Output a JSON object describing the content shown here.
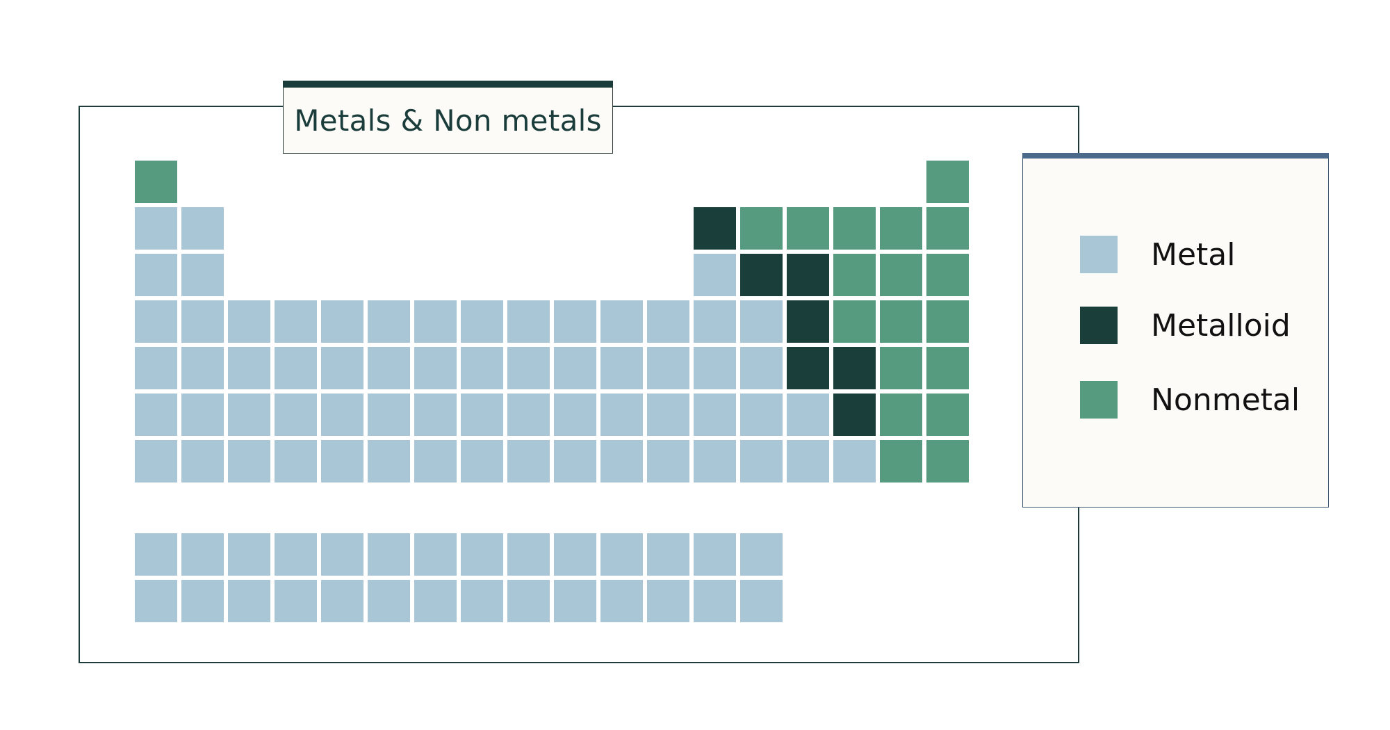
{
  "title": "Metals & Non metals",
  "colors": {
    "metal": "#a8c6d6",
    "metalloid": "#1a3f3b",
    "nonmetal": "#569a80"
  },
  "legend": [
    {
      "key": "metal",
      "label": "Metal"
    },
    {
      "key": "metalloid",
      "label": "Metalloid"
    },
    {
      "key": "nonmetal",
      "label": "Nonmetal"
    }
  ],
  "chart_data": {
    "type": "table",
    "main_rows": [
      [
        "N",
        "",
        "",
        "",
        "",
        "",
        "",
        "",
        "",
        "",
        "",
        "",
        "",
        "",
        "",
        "",
        "",
        "N"
      ],
      [
        "M",
        "M",
        "",
        "",
        "",
        "",
        "",
        "",
        "",
        "",
        "",
        "",
        "D",
        "N",
        "N",
        "N",
        "N",
        "N"
      ],
      [
        "M",
        "M",
        "",
        "",
        "",
        "",
        "",
        "",
        "",
        "",
        "",
        "",
        "M",
        "D",
        "D",
        "N",
        "N",
        "N"
      ],
      [
        "M",
        "M",
        "M",
        "M",
        "M",
        "M",
        "M",
        "M",
        "M",
        "M",
        "M",
        "M",
        "M",
        "M",
        "D",
        "N",
        "N",
        "N"
      ],
      [
        "M",
        "M",
        "M",
        "M",
        "M",
        "M",
        "M",
        "M",
        "M",
        "M",
        "M",
        "M",
        "M",
        "M",
        "D",
        "D",
        "N",
        "N"
      ],
      [
        "M",
        "M",
        "M",
        "M",
        "M",
        "M",
        "M",
        "M",
        "M",
        "M",
        "M",
        "M",
        "M",
        "M",
        "M",
        "D",
        "N",
        "N"
      ],
      [
        "M",
        "M",
        "M",
        "M",
        "M",
        "M",
        "M",
        "M",
        "M",
        "M",
        "M",
        "M",
        "M",
        "M",
        "M",
        "M",
        "N",
        "N"
      ]
    ],
    "extra_rows": [
      [
        "M",
        "M",
        "M",
        "M",
        "M",
        "M",
        "M",
        "M",
        "M",
        "M",
        "M",
        "M",
        "M",
        "M"
      ],
      [
        "M",
        "M",
        "M",
        "M",
        "M",
        "M",
        "M",
        "M",
        "M",
        "M",
        "M",
        "M",
        "M",
        "M"
      ]
    ],
    "codes": {
      "M": "metal",
      "D": "metalloid",
      "N": "nonmetal"
    }
  }
}
